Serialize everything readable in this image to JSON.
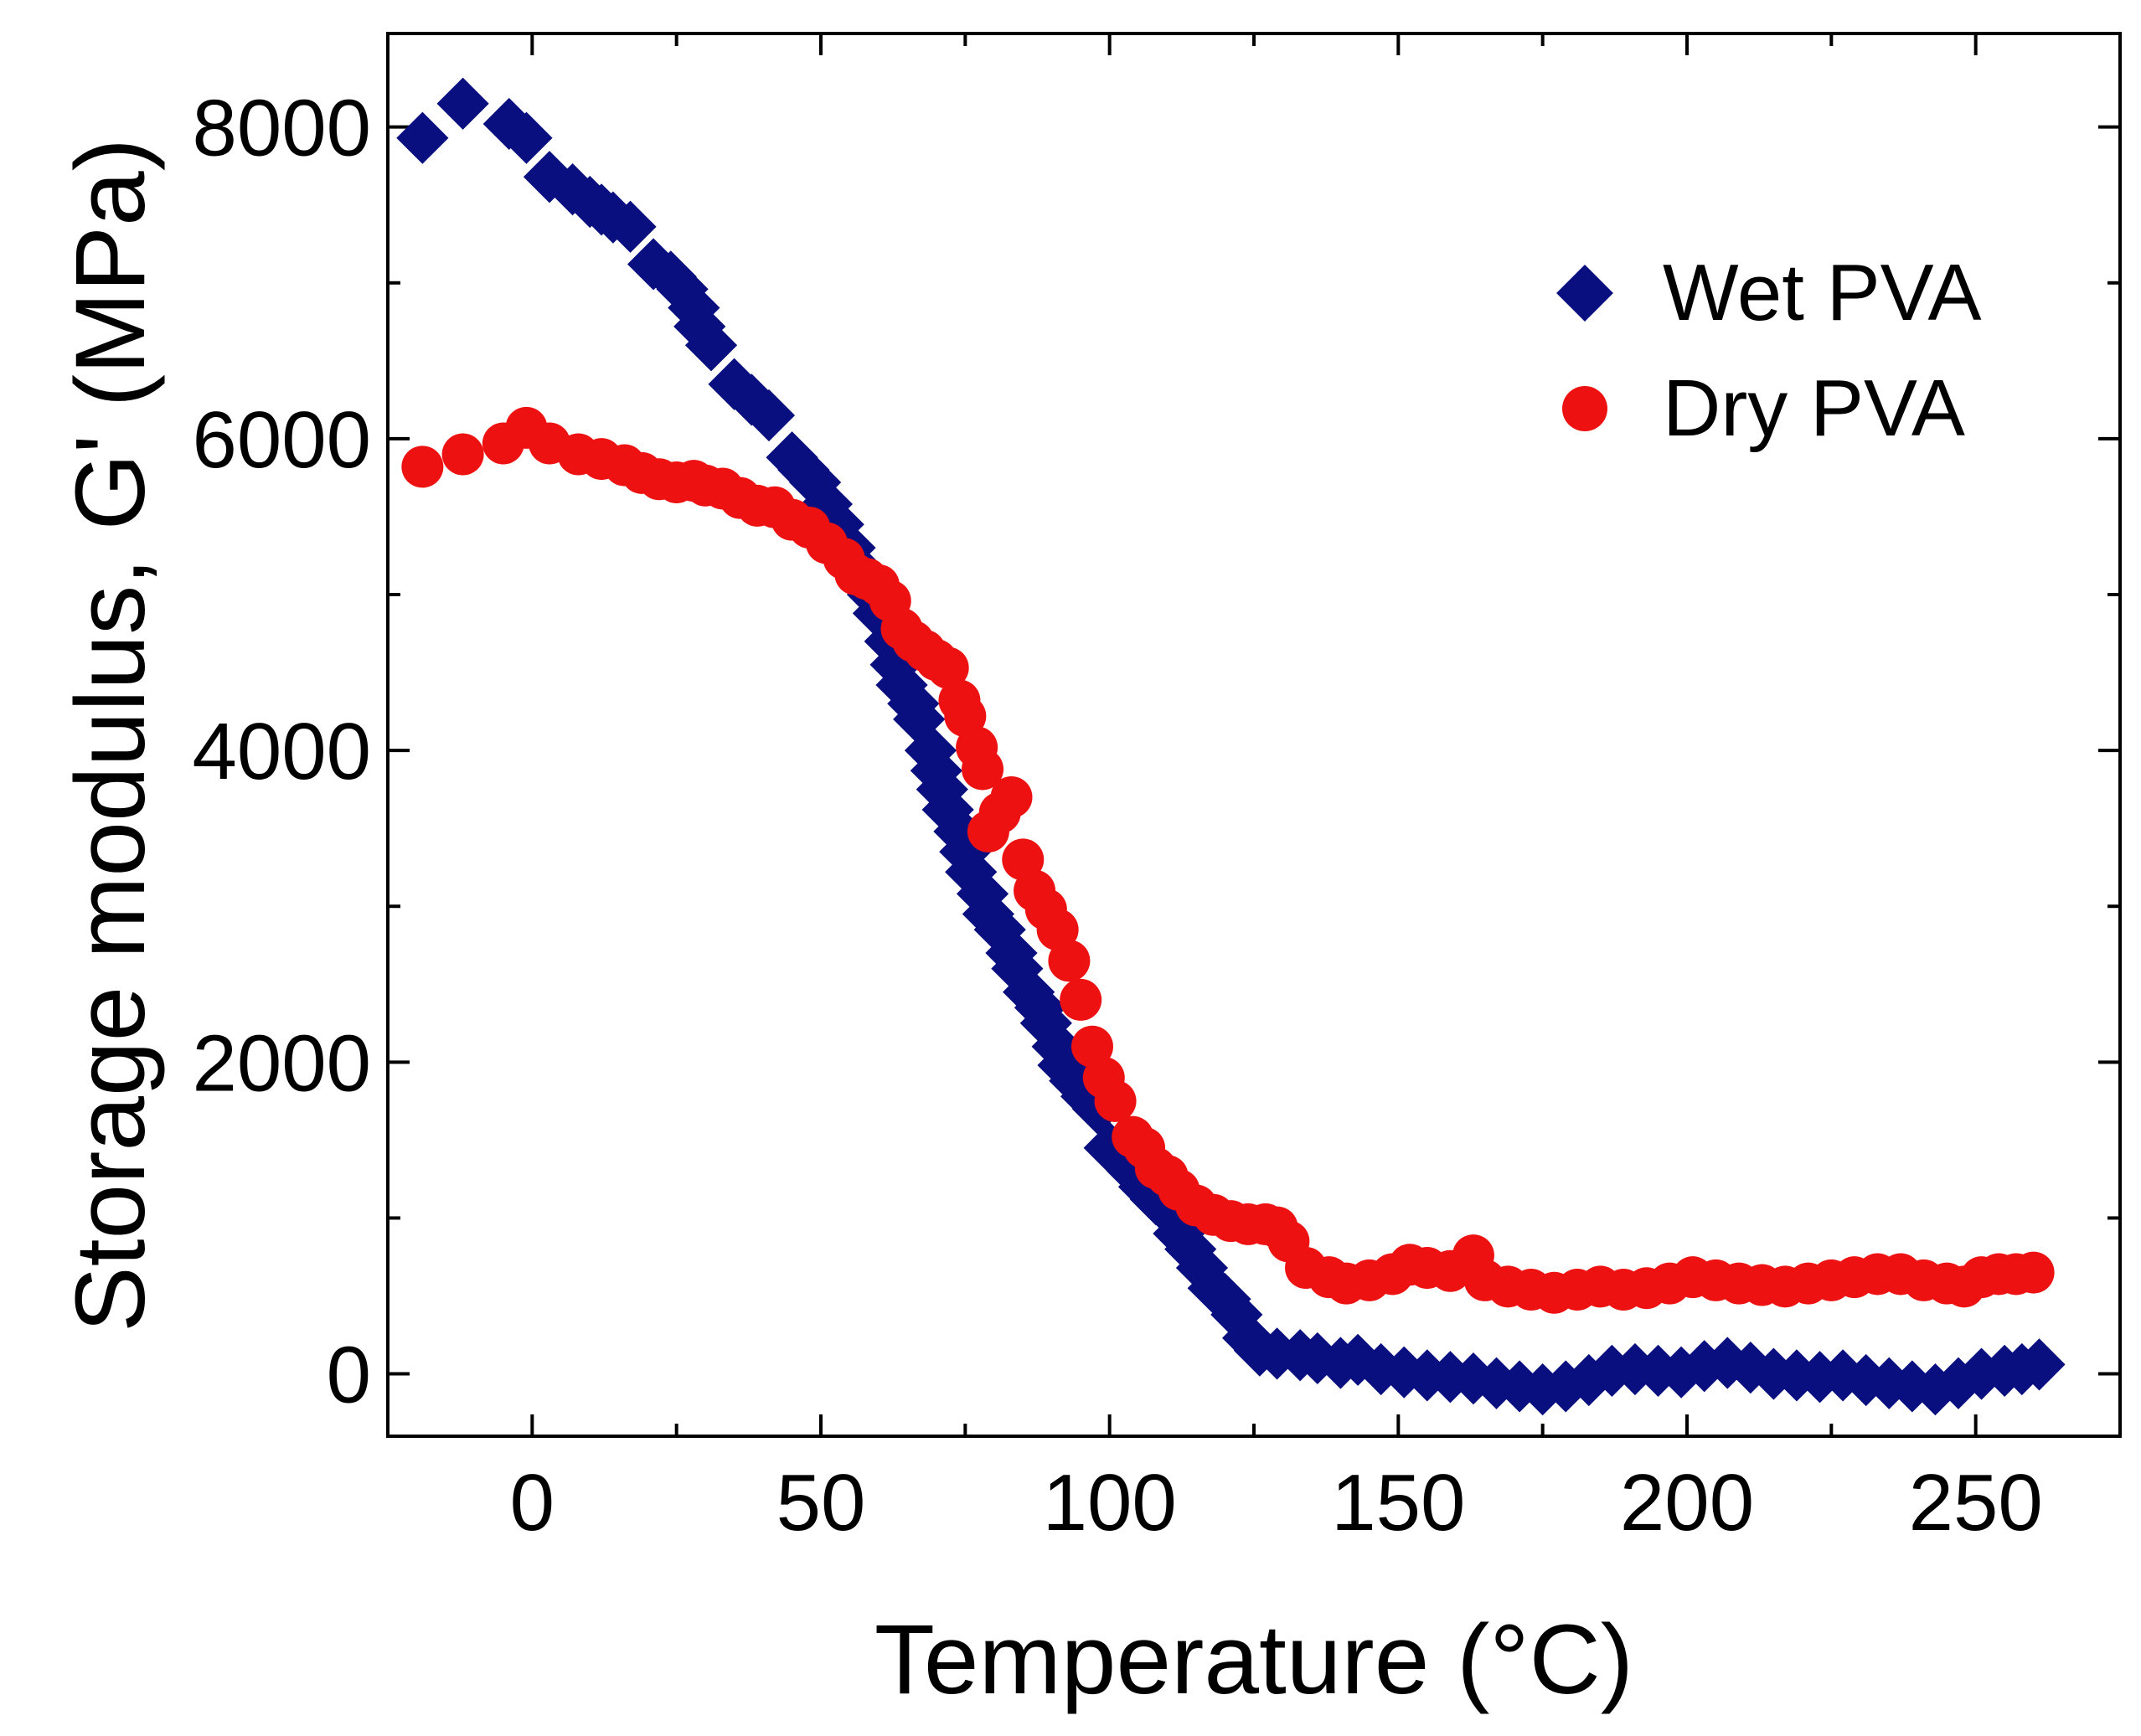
{
  "chart_data": {
    "type": "scatter",
    "title": "",
    "xlabel": "Temperature (°C)",
    "ylabel": "Storage modulus, G' (MPa)",
    "xlim": [
      -25,
      275
    ],
    "ylim": [
      -400,
      8600
    ],
    "xticks": [
      0,
      50,
      100,
      150,
      200,
      250
    ],
    "yticks": [
      0,
      2000,
      4000,
      6000,
      8000
    ],
    "xtick_labels": [
      "0",
      "50",
      "100",
      "150",
      "200",
      "250"
    ],
    "ytick_labels": [
      "0",
      "2000",
      "4000",
      "6000",
      "8000"
    ],
    "grid": false,
    "legend_position": "top-right",
    "series": [
      {
        "name": "Wet PVA",
        "marker": "diamond",
        "color": "#0a0f80",
        "points": [
          [
            -19,
            7930
          ],
          [
            -12,
            8150
          ],
          [
            -4,
            8020
          ],
          [
            -1,
            7930
          ],
          [
            3,
            7680
          ],
          [
            7,
            7600
          ],
          [
            10,
            7520
          ],
          [
            12,
            7470
          ],
          [
            14,
            7420
          ],
          [
            17,
            7360
          ],
          [
            21,
            7120
          ],
          [
            24,
            7040
          ],
          [
            26,
            6960
          ],
          [
            28,
            6840
          ],
          [
            29,
            6720
          ],
          [
            31,
            6600
          ],
          [
            35,
            6350
          ],
          [
            38,
            6250
          ],
          [
            41,
            6150
          ],
          [
            45,
            5880
          ],
          [
            47,
            5800
          ],
          [
            49,
            5720
          ],
          [
            51,
            5580
          ],
          [
            53,
            5450
          ],
          [
            55,
            5300
          ],
          [
            57,
            5150
          ],
          [
            59,
            5000
          ],
          [
            60,
            4880
          ],
          [
            62,
            4700
          ],
          [
            63,
            4550
          ],
          [
            64,
            4420
          ],
          [
            66,
            4300
          ],
          [
            67,
            4200
          ],
          [
            69,
            4000
          ],
          [
            70,
            3870
          ],
          [
            71,
            3750
          ],
          [
            72,
            3620
          ],
          [
            74,
            3480
          ],
          [
            75,
            3350
          ],
          [
            76,
            3220
          ],
          [
            78,
            3080
          ],
          [
            79,
            2950
          ],
          [
            81,
            2850
          ],
          [
            83,
            2700
          ],
          [
            84,
            2600
          ],
          [
            86,
            2450
          ],
          [
            88,
            2350
          ],
          [
            89,
            2250
          ],
          [
            91,
            2100
          ],
          [
            92,
            1980
          ],
          [
            94,
            1880
          ],
          [
            96,
            1780
          ],
          [
            98,
            1700
          ],
          [
            100,
            1450
          ],
          [
            102,
            1380
          ],
          [
            104,
            1300
          ],
          [
            106,
            1200
          ],
          [
            108,
            1120
          ],
          [
            110,
            1050
          ],
          [
            112,
            900
          ],
          [
            114,
            800
          ],
          [
            116,
            680
          ],
          [
            118,
            550
          ],
          [
            120,
            480
          ],
          [
            122,
            380
          ],
          [
            124,
            230
          ],
          [
            126,
            150
          ],
          [
            129,
            130
          ],
          [
            133,
            120
          ],
          [
            136,
            100
          ],
          [
            140,
            70
          ],
          [
            143,
            90
          ],
          [
            147,
            30
          ],
          [
            151,
            10
          ],
          [
            155,
            -10
          ],
          [
            159,
            -20
          ],
          [
            163,
            -30
          ],
          [
            167,
            -60
          ],
          [
            171,
            -80
          ],
          [
            175,
            -100
          ],
          [
            179,
            -80
          ],
          [
            183,
            -40
          ],
          [
            187,
            20
          ],
          [
            191,
            30
          ],
          [
            195,
            20
          ],
          [
            199,
            10
          ],
          [
            203,
            50
          ],
          [
            207,
            70
          ],
          [
            211,
            40
          ],
          [
            215,
            0
          ],
          [
            219,
            -10
          ],
          [
            223,
            -20
          ],
          [
            227,
            -10
          ],
          [
            231,
            -40
          ],
          [
            235,
            -60
          ],
          [
            239,
            -80
          ],
          [
            243,
            -100
          ],
          [
            247,
            -60
          ],
          [
            251,
            0
          ],
          [
            255,
            20
          ],
          [
            258,
            30
          ],
          [
            261,
            60
          ]
        ]
      },
      {
        "name": "Dry PVA",
        "marker": "circle",
        "color": "#ee1111",
        "points": [
          [
            -19,
            5820
          ],
          [
            -12,
            5900
          ],
          [
            -5,
            5970
          ],
          [
            -1,
            6070
          ],
          [
            3,
            5970
          ],
          [
            8,
            5900
          ],
          [
            12,
            5870
          ],
          [
            16,
            5830
          ],
          [
            19,
            5780
          ],
          [
            22,
            5740
          ],
          [
            25,
            5720
          ],
          [
            28,
            5730
          ],
          [
            30,
            5700
          ],
          [
            33,
            5680
          ],
          [
            36,
            5620
          ],
          [
            39,
            5570
          ],
          [
            42,
            5560
          ],
          [
            45,
            5480
          ],
          [
            48,
            5430
          ],
          [
            51,
            5330
          ],
          [
            54,
            5230
          ],
          [
            56,
            5130
          ],
          [
            58,
            5100
          ],
          [
            60,
            5060
          ],
          [
            62,
            4960
          ],
          [
            64,
            4780
          ],
          [
            66,
            4700
          ],
          [
            68,
            4640
          ],
          [
            70,
            4580
          ],
          [
            72,
            4530
          ],
          [
            74,
            4320
          ],
          [
            75,
            4220
          ],
          [
            77,
            4020
          ],
          [
            78,
            3880
          ],
          [
            79,
            3480
          ],
          [
            81,
            3600
          ],
          [
            83,
            3700
          ],
          [
            85,
            3300
          ],
          [
            87,
            3100
          ],
          [
            89,
            2980
          ],
          [
            91,
            2850
          ],
          [
            93,
            2650
          ],
          [
            95,
            2400
          ],
          [
            97,
            2100
          ],
          [
            99,
            1900
          ],
          [
            101,
            1750
          ],
          [
            104,
            1520
          ],
          [
            106,
            1450
          ],
          [
            108,
            1320
          ],
          [
            110,
            1270
          ],
          [
            112,
            1180
          ],
          [
            115,
            1080
          ],
          [
            118,
            1020
          ],
          [
            121,
            980
          ],
          [
            124,
            960
          ],
          [
            127,
            960
          ],
          [
            129,
            940
          ],
          [
            131,
            850
          ],
          [
            134,
            680
          ],
          [
            138,
            620
          ],
          [
            141,
            580
          ],
          [
            145,
            600
          ],
          [
            149,
            640
          ],
          [
            152,
            700
          ],
          [
            155,
            680
          ],
          [
            159,
            660
          ],
          [
            163,
            760
          ],
          [
            165,
            600
          ],
          [
            169,
            560
          ],
          [
            173,
            540
          ],
          [
            177,
            520
          ],
          [
            181,
            540
          ],
          [
            185,
            560
          ],
          [
            189,
            540
          ],
          [
            193,
            550
          ],
          [
            197,
            580
          ],
          [
            201,
            620
          ],
          [
            205,
            600
          ],
          [
            209,
            580
          ],
          [
            213,
            570
          ],
          [
            217,
            560
          ],
          [
            221,
            580
          ],
          [
            225,
            600
          ],
          [
            229,
            620
          ],
          [
            233,
            640
          ],
          [
            237,
            640
          ],
          [
            241,
            600
          ],
          [
            245,
            580
          ],
          [
            248,
            560
          ],
          [
            251,
            620
          ],
          [
            254,
            640
          ],
          [
            257,
            640
          ],
          [
            260,
            650
          ]
        ]
      }
    ]
  }
}
